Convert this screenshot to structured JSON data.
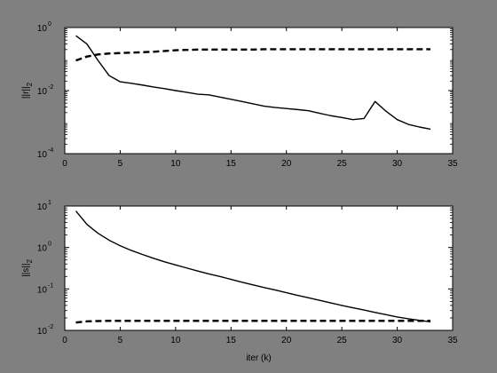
{
  "chart_data": [
    {
      "type": "line",
      "ylabel": "||r||",
      "ylabel_sub": "2",
      "xlabel": "",
      "xlim": [
        0,
        35
      ],
      "ylim": [
        0.0001,
        1
      ],
      "yscale": "log",
      "xticks": [
        0,
        5,
        10,
        15,
        20,
        25,
        30,
        35
      ],
      "yticks": [
        {
          "base": "10",
          "exp": "0"
        },
        {
          "base": "10",
          "exp": "-2"
        },
        {
          "base": "10",
          "exp": "-4"
        }
      ],
      "series": [
        {
          "style": "solid",
          "x": [
            1,
            2,
            3,
            4,
            5,
            6,
            7,
            8,
            9,
            10,
            11,
            12,
            13,
            14,
            15,
            16,
            17,
            18,
            19,
            20,
            21,
            22,
            23,
            24,
            25,
            26,
            27,
            28,
            29,
            30,
            31,
            32,
            33
          ],
          "y": [
            0.55,
            0.3,
            0.09,
            0.03,
            0.019,
            0.017,
            0.015,
            0.013,
            0.0115,
            0.01,
            0.0088,
            0.0077,
            0.0073,
            0.0062,
            0.0053,
            0.0045,
            0.0038,
            0.0032,
            0.0029,
            0.0027,
            0.0025,
            0.0023,
            0.0019,
            0.0016,
            0.0014,
            0.0012,
            0.0013,
            0.0045,
            0.0022,
            0.0012,
            0.00085,
            0.0007,
            0.0006
          ]
        },
        {
          "style": "dashed",
          "x": [
            1,
            2,
            3,
            4,
            5,
            6,
            7,
            8,
            9,
            10,
            11,
            12,
            13,
            14,
            15,
            16,
            17,
            18,
            19,
            20,
            21,
            22,
            23,
            24,
            25,
            26,
            27,
            28,
            29,
            30,
            31,
            32,
            33
          ],
          "y": [
            0.09,
            0.12,
            0.14,
            0.15,
            0.155,
            0.16,
            0.165,
            0.17,
            0.18,
            0.19,
            0.195,
            0.2,
            0.2,
            0.2,
            0.2,
            0.2,
            0.2,
            0.205,
            0.205,
            0.205,
            0.205,
            0.205,
            0.205,
            0.205,
            0.205,
            0.205,
            0.205,
            0.205,
            0.205,
            0.205,
            0.205,
            0.205,
            0.205
          ]
        }
      ]
    },
    {
      "type": "line",
      "ylabel": "||s||",
      "ylabel_sub": "2",
      "xlabel": "iter (k)",
      "xlim": [
        0,
        35
      ],
      "ylim": [
        0.01,
        10
      ],
      "yscale": "log",
      "xticks": [
        0,
        5,
        10,
        15,
        20,
        25,
        30,
        35
      ],
      "yticks": [
        {
          "base": "10",
          "exp": "1"
        },
        {
          "base": "10",
          "exp": "0"
        },
        {
          "base": "10",
          "exp": "-1"
        },
        {
          "base": "10",
          "exp": "-2"
        }
      ],
      "series": [
        {
          "style": "solid",
          "x": [
            1,
            2,
            3,
            4,
            5,
            6,
            7,
            8,
            9,
            10,
            11,
            12,
            13,
            14,
            15,
            16,
            17,
            18,
            19,
            20,
            21,
            22,
            23,
            24,
            25,
            26,
            27,
            28,
            29,
            30,
            31,
            32,
            33
          ],
          "y": [
            7.6,
            3.6,
            2.2,
            1.5,
            1.1,
            0.85,
            0.68,
            0.55,
            0.45,
            0.38,
            0.32,
            0.27,
            0.23,
            0.2,
            0.17,
            0.145,
            0.125,
            0.108,
            0.094,
            0.081,
            0.07,
            0.061,
            0.053,
            0.046,
            0.04,
            0.035,
            0.031,
            0.027,
            0.024,
            0.021,
            0.019,
            0.0175,
            0.016
          ]
        },
        {
          "style": "dashed",
          "x": [
            1,
            2,
            3,
            4,
            5,
            6,
            7,
            8,
            9,
            10,
            11,
            12,
            13,
            14,
            15,
            16,
            17,
            18,
            19,
            20,
            21,
            22,
            23,
            24,
            25,
            26,
            27,
            28,
            29,
            30,
            31,
            32,
            33
          ],
          "y": [
            0.0155,
            0.0165,
            0.0168,
            0.017,
            0.017,
            0.017,
            0.017,
            0.017,
            0.017,
            0.017,
            0.017,
            0.017,
            0.017,
            0.017,
            0.017,
            0.017,
            0.017,
            0.017,
            0.017,
            0.017,
            0.017,
            0.017,
            0.017,
            0.017,
            0.017,
            0.017,
            0.017,
            0.017,
            0.017,
            0.017,
            0.017,
            0.017,
            0.017
          ]
        }
      ]
    }
  ],
  "colors": {
    "figure_bg": "#808080",
    "axes_bg": "#ffffff",
    "line": "#000000"
  }
}
